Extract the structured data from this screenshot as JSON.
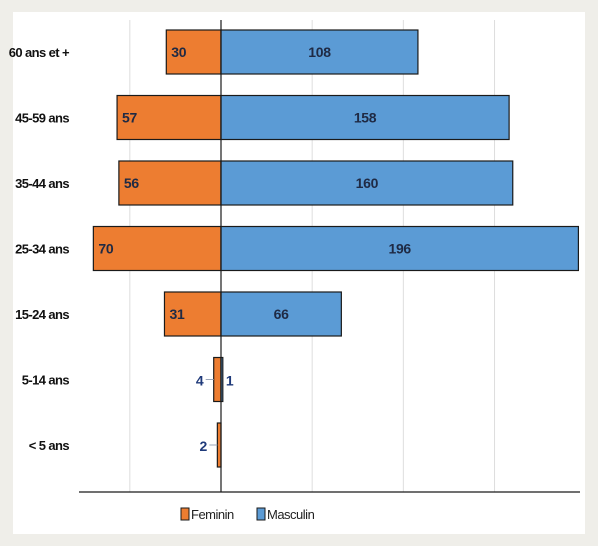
{
  "chart_data": {
    "type": "bar",
    "orientation": "horizontal",
    "layout": "population-pyramid",
    "categories": [
      "60 ans et +",
      "45-59 ans",
      "35-44 ans",
      "25-34 ans",
      "15-24 ans",
      "5-14 ans",
      "< 5 ans"
    ],
    "series": [
      {
        "name": "Feminin",
        "color": "#ed7d31",
        "direction": "left",
        "values": [
          30,
          57,
          56,
          70,
          31,
          4,
          2
        ]
      },
      {
        "name": "Masculin",
        "color": "#5b9bd5",
        "direction": "right",
        "values": [
          108,
          158,
          160,
          196,
          66,
          1,
          0
        ]
      }
    ],
    "title": "",
    "xlabel": "",
    "ylabel": "",
    "grid": true,
    "legend": "bottom-center",
    "border_color": "#1a1a1a"
  }
}
